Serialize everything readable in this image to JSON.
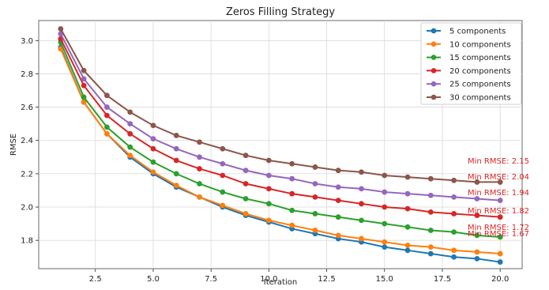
{
  "chart_data": {
    "type": "line",
    "title": "Zeros Filling Strategy",
    "xlabel": "Iteration",
    "ylabel": "RMSE",
    "xlim": [
      0.05,
      20.95
    ],
    "ylim": [
      1.63,
      3.12
    ],
    "x_ticks": [
      "2.5",
      "5.0",
      "7.5",
      "10.0",
      "12.5",
      "15.0",
      "17.5",
      "20.0"
    ],
    "y_ticks": [
      "1.8",
      "2.0",
      "2.2",
      "2.4",
      "2.6",
      "2.8",
      "3.0"
    ],
    "x": [
      1,
      2,
      3,
      4,
      5,
      6,
      7,
      8,
      9,
      10,
      11,
      12,
      13,
      14,
      15,
      16,
      17,
      18,
      19,
      20
    ],
    "grid": true,
    "legend_position": "top-right",
    "series": [
      {
        "name": "5 components",
        "color": "#1f77b4",
        "values": [
          2.96,
          2.63,
          2.44,
          2.3,
          2.2,
          2.12,
          2.06,
          2.0,
          1.95,
          1.91,
          1.87,
          1.84,
          1.81,
          1.79,
          1.76,
          1.74,
          1.72,
          1.7,
          1.69,
          1.67
        ],
        "annotation": "Min RMSE: 1.67"
      },
      {
        "name": "10 components",
        "color": "#ff7f0e",
        "values": [
          2.95,
          2.63,
          2.44,
          2.31,
          2.21,
          2.13,
          2.06,
          2.01,
          1.96,
          1.92,
          1.89,
          1.86,
          1.83,
          1.81,
          1.79,
          1.77,
          1.76,
          1.74,
          1.73,
          1.72
        ],
        "annotation": "Min RMSE: 1.72"
      },
      {
        "name": "15 components",
        "color": "#2ca02c",
        "values": [
          2.99,
          2.66,
          2.48,
          2.36,
          2.27,
          2.2,
          2.14,
          2.09,
          2.05,
          2.02,
          1.98,
          1.96,
          1.94,
          1.92,
          1.9,
          1.88,
          1.86,
          1.85,
          1.83,
          1.82
        ],
        "annotation": "Min RMSE: 1.82"
      },
      {
        "name": "20 components",
        "color": "#d62728",
        "values": [
          3.01,
          2.73,
          2.55,
          2.44,
          2.35,
          2.28,
          2.23,
          2.19,
          2.14,
          2.11,
          2.08,
          2.06,
          2.04,
          2.02,
          2.0,
          1.99,
          1.97,
          1.96,
          1.95,
          1.94
        ],
        "annotation": "Min RMSE: 1.94"
      },
      {
        "name": "25 components",
        "color": "#9467bd",
        "values": [
          3.04,
          2.77,
          2.6,
          2.5,
          2.41,
          2.35,
          2.3,
          2.26,
          2.22,
          2.19,
          2.17,
          2.14,
          2.12,
          2.11,
          2.09,
          2.08,
          2.07,
          2.06,
          2.05,
          2.04
        ],
        "annotation": "Min RMSE: 2.04"
      },
      {
        "name": "30 components",
        "color": "#8c564b",
        "values": [
          3.07,
          2.82,
          2.67,
          2.57,
          2.49,
          2.43,
          2.39,
          2.35,
          2.31,
          2.28,
          2.26,
          2.24,
          2.22,
          2.21,
          2.19,
          2.18,
          2.17,
          2.16,
          2.15,
          2.15
        ],
        "annotation": "Min RMSE: 2.15"
      }
    ],
    "annotation_color": "#d62728"
  }
}
